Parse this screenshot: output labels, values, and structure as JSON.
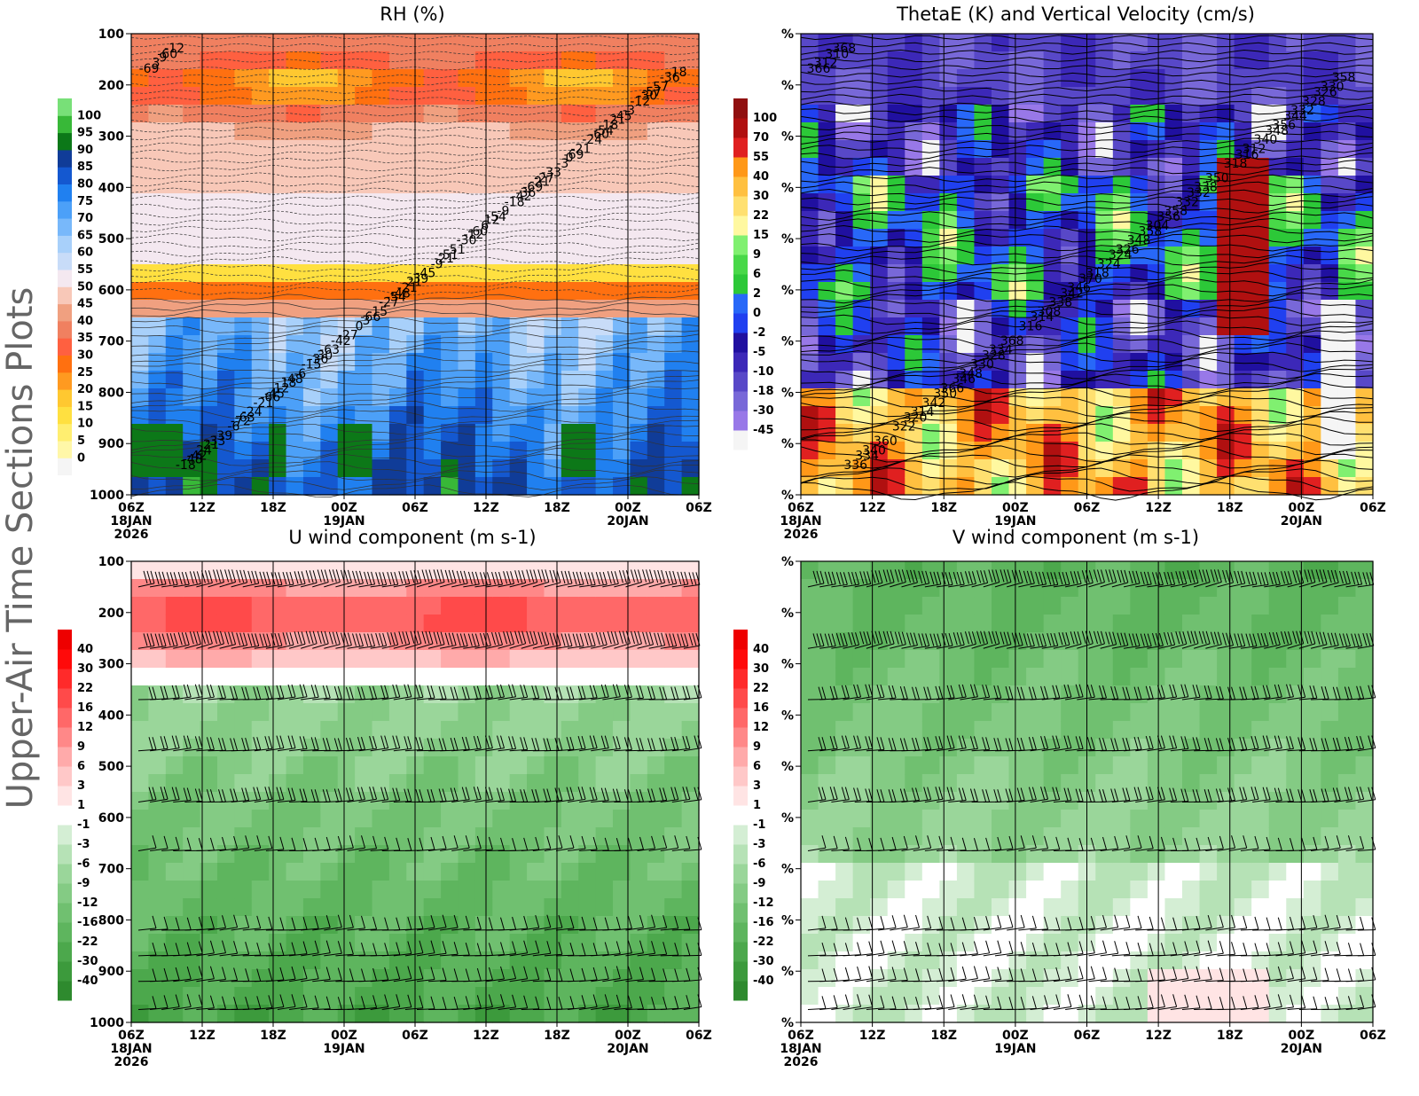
{
  "side_title": "Upper-Air Time Sections Plots",
  "chart_data": [
    {
      "type": "heatmap",
      "title": "RH (%)",
      "y_axis": {
        "ticks": [
          "100",
          "200",
          "300",
          "400",
          "500",
          "600",
          "700",
          "800",
          "900",
          "1000"
        ],
        "range": [
          100,
          1000
        ]
      },
      "x_axis": {
        "ticks": [
          "06Z",
          "12Z",
          "18Z",
          "00Z",
          "06Z",
          "12Z",
          "18Z",
          "00Z",
          "06Z"
        ],
        "date_labels": [
          "18JAN",
          "19JAN",
          "20JAN"
        ],
        "year_label": "2026"
      },
      "colorbar": {
        "labels": [
          "0",
          "5",
          "10",
          "15",
          "20",
          "25",
          "30",
          "35",
          "40",
          "45",
          "50",
          "55",
          "60",
          "65",
          "70",
          "75",
          "80",
          "85",
          "90",
          "95",
          "100"
        ]
      },
      "contour_labels": [
        "-69",
        "-60",
        "-45",
        "-54",
        "-48",
        "-42",
        "-36",
        "-30",
        "-57",
        "-51",
        "-63",
        "-69",
        "-66",
        "-60",
        "-54",
        "-48",
        "-45",
        "-39",
        "-33",
        "-27",
        "-42",
        "-36",
        "-30",
        "-21",
        "-24",
        "-27",
        "-18",
        "-18",
        "-15",
        "-12",
        "-9",
        "-6",
        "-3",
        "0",
        "3",
        "6",
        "12",
        "18",
        "-21",
        "24",
        "-69",
        "-63",
        "-57",
        "-51",
        "-24",
        "-21",
        "-15",
        "-12",
        "-9",
        "-6",
        "-3",
        "-45",
        "-39",
        "-33",
        "-27",
        "-18",
        "-12",
        "-66",
        "-60",
        "-54",
        "-48",
        "-42",
        "-36",
        "-30",
        "-21",
        "-72",
        "0",
        "3",
        "9",
        "12",
        "18",
        "21",
        "21",
        "21",
        "-21"
      ]
    },
    {
      "type": "heatmap",
      "title": "ThetaE (K) and Vertical Velocity (cm/s)",
      "y_axis": {
        "ticks": [
          "%",
          "%",
          "%",
          "%",
          "%",
          "%",
          "%",
          "%",
          "%",
          "%"
        ]
      },
      "x_axis": {
        "ticks": [
          "06Z",
          "12Z",
          "18Z",
          "00Z",
          "06Z",
          "12Z",
          "18Z",
          "00Z",
          "06Z"
        ],
        "date_labels": [
          "18JAN",
          "19JAN",
          "20JAN"
        ],
        "year_label": "2026"
      },
      "colorbar": {
        "labels": [
          "-45",
          "-30",
          "-18",
          "-10",
          "-5",
          "-2",
          "0",
          "2",
          "6",
          "9",
          "15",
          "22",
          "30",
          "40",
          "55",
          "70",
          "100"
        ]
      },
      "contour_labels": [
        "366",
        "358",
        "350",
        "348",
        "342",
        "334",
        "332",
        "328",
        "326",
        "324",
        "320",
        "316",
        "314",
        "310",
        "356",
        "346",
        "344",
        "370",
        "360",
        "350",
        "368",
        "358",
        "348",
        "342",
        "340",
        "338",
        "336",
        "332",
        "330",
        "328",
        "324",
        "322",
        "318",
        "316",
        "312",
        "304",
        "366",
        "356",
        "346",
        "340",
        "338",
        "334",
        "330",
        "326",
        "314",
        "312",
        "308",
        "368",
        "358",
        "348",
        "332",
        "318"
      ]
    },
    {
      "type": "heatmap",
      "title": "U wind component (m s-1)",
      "y_axis": {
        "ticks": [
          "100",
          "200",
          "300",
          "400",
          "500",
          "600",
          "700",
          "800",
          "900",
          "1000"
        ],
        "range": [
          100,
          1000
        ]
      },
      "x_axis": {
        "ticks": [
          "06Z",
          "12Z",
          "18Z",
          "00Z",
          "06Z",
          "12Z",
          "18Z",
          "00Z",
          "06Z"
        ],
        "date_labels": [
          "18JAN",
          "19JAN",
          "20JAN"
        ],
        "year_label": "2026"
      },
      "colorbar": {
        "labels": [
          "-40",
          "-30",
          "-22",
          "-16",
          "-12",
          "-9",
          "-6",
          "-3",
          "-1",
          "1",
          "3",
          "6",
          "9",
          "12",
          "16",
          "22",
          "30",
          "40"
        ]
      },
      "barb_levels": [
        150,
        270,
        370,
        470,
        570,
        665,
        820,
        870,
        920,
        975
      ]
    },
    {
      "type": "heatmap",
      "title": "V wind component (m s-1)",
      "y_axis": {
        "ticks": [
          "%",
          "%",
          "%",
          "%",
          "%",
          "%",
          "%",
          "%",
          "%",
          "%"
        ]
      },
      "x_axis": {
        "ticks": [
          "06Z",
          "12Z",
          "18Z",
          "00Z",
          "06Z",
          "12Z",
          "18Z",
          "00Z",
          "06Z"
        ],
        "date_labels": [
          "18JAN",
          "19JAN",
          "20JAN"
        ],
        "year_label": "2026"
      },
      "colorbar": {
        "labels": [
          "-40",
          "-30",
          "-22",
          "-16",
          "-12",
          "-9",
          "-6",
          "-3",
          "-1",
          "1",
          "3",
          "6",
          "9",
          "12",
          "16",
          "22",
          "30",
          "40"
        ]
      },
      "barb_levels": [
        150,
        270,
        370,
        470,
        570,
        665,
        820,
        870,
        920,
        975
      ]
    }
  ]
}
